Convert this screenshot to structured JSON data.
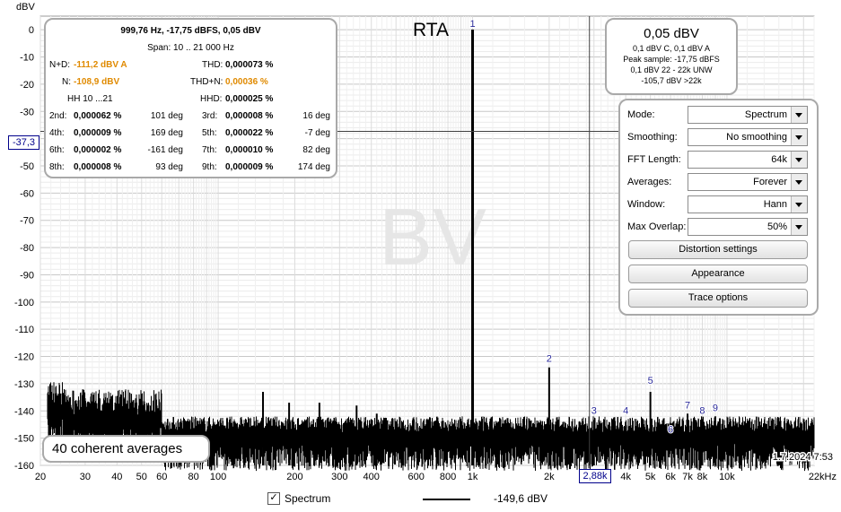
{
  "chart_data": {
    "type": "line",
    "title": "RTA",
    "watermark": "BV",
    "ylabel": "dBV",
    "x_scale": "log",
    "xlim": [
      20,
      22000
    ],
    "ylim": [
      -160,
      5
    ],
    "grid": true,
    "y_ticks": [
      "0",
      "-10",
      "-20",
      "-30",
      "-40",
      "-50",
      "-60",
      "-70",
      "-80",
      "-90",
      "-100",
      "-110",
      "-120",
      "-130",
      "-140",
      "-150",
      "-160"
    ],
    "x_ticks": [
      {
        "v": 20,
        "t": "20"
      },
      {
        "v": 30,
        "t": "30"
      },
      {
        "v": 40,
        "t": "40"
      },
      {
        "v": 50,
        "t": "50"
      },
      {
        "v": 60,
        "t": "60"
      },
      {
        "v": 80,
        "t": "80"
      },
      {
        "v": 100,
        "t": "100"
      },
      {
        "v": 200,
        "t": "200"
      },
      {
        "v": 300,
        "t": "300"
      },
      {
        "v": 400,
        "t": "400"
      },
      {
        "v": 600,
        "t": "600"
      },
      {
        "v": 800,
        "t": "800"
      },
      {
        "v": 1000,
        "t": "1k"
      },
      {
        "v": 2000,
        "t": "2k"
      },
      {
        "v": 4000,
        "t": "4k"
      },
      {
        "v": 5000,
        "t": "5k"
      },
      {
        "v": 6000,
        "t": "6k"
      },
      {
        "v": 7000,
        "t": "7k"
      },
      {
        "v": 8000,
        "t": "8k"
      },
      {
        "v": 10000,
        "t": "10k"
      },
      {
        "v": 22000,
        "t": "22kHz"
      }
    ],
    "series": [
      {
        "name": "Spectrum",
        "color": "#000000",
        "noise_floor": -148,
        "peaks": [
          {
            "x": 1000,
            "y": 0.05
          },
          {
            "x": 2000,
            "y": -124
          },
          {
            "x": 5000,
            "y": -133
          },
          {
            "x": 95,
            "y": -147
          },
          {
            "x": 150,
            "y": -133
          },
          {
            "x": 190,
            "y": -137
          },
          {
            "x": 250,
            "y": -137
          },
          {
            "x": 350,
            "y": -138
          },
          {
            "x": 420,
            "y": -141
          },
          {
            "x": 3000,
            "y": -145
          },
          {
            "x": 4000,
            "y": -144
          },
          {
            "x": 7000,
            "y": -141
          },
          {
            "x": 8000,
            "y": -143
          },
          {
            "x": 9000,
            "y": -142
          }
        ]
      }
    ],
    "harmonic_markers": [
      {
        "label": "1",
        "x": 1000,
        "y": 0
      },
      {
        "label": "2",
        "x": 2000,
        "y": -123
      },
      {
        "label": "3",
        "x": 3000,
        "y": -142
      },
      {
        "label": "4",
        "x": 4000,
        "y": -142
      },
      {
        "label": "5",
        "x": 5000,
        "y": -131
      },
      {
        "label": "6",
        "x": 6000,
        "y": -149
      },
      {
        "label": "7",
        "x": 7000,
        "y": -140
      },
      {
        "label": "8",
        "x": 8000,
        "y": -142
      },
      {
        "label": "9",
        "x": 9000,
        "y": -141
      }
    ],
    "cursor": {
      "x": 2880,
      "y": -37.3,
      "x_readout": "2,88k",
      "y_readout": "-37,3"
    },
    "averages_label": "40 coherent averages",
    "timestamp": "1.7.2024 7:53",
    "legend": {
      "checkbox_checked": true,
      "name": "Spectrum",
      "value": "-149,6 dBV"
    }
  },
  "stats": {
    "header1": "999,76 Hz, -17,75 dBFS, 0,05 dBV",
    "header2": "Span: 10 .. 21 000 Hz",
    "nd_label": "N+D:",
    "nd_value": "-111,2 dBV A",
    "thd_label": "THD:",
    "thd_value": "0,000073 %",
    "n_label": "N:",
    "n_value": "-108,9 dBV",
    "thdn_label": "THD+N:",
    "thdn_value": "0,00036 %",
    "hh_label": "HH 10 ...21",
    "hhd_label": "HHD:",
    "hhd_value": "0,000025 %",
    "harmonics": [
      {
        "l1": "2nd:",
        "v1": "0,000062 %",
        "d1": "101 deg",
        "l2": "3rd:",
        "v2": "0,000008 %",
        "d2": "16 deg"
      },
      {
        "l1": "4th:",
        "v1": "0,000009 %",
        "d1": "169 deg",
        "l2": "5th:",
        "v2": "0,000022 %",
        "d2": "-7 deg"
      },
      {
        "l1": "6th:",
        "v1": "0,000002 %",
        "d1": "-161 deg",
        "l2": "7th:",
        "v2": "0,000010 %",
        "d2": "82 deg"
      },
      {
        "l1": "8th:",
        "v1": "0,000008 %",
        "d1": "93 deg",
        "l2": "9th:",
        "v2": "0,000009 %",
        "d2": "174 deg"
      }
    ]
  },
  "level": {
    "main": "0,05 dBV",
    "l1": "0,1 dBV C, 0,1 dBV A",
    "l2": "Peak sample: -17,75 dBFS",
    "l3": "0,1 dBV 22 - 22k UNW",
    "l4": "-105,7 dBV >22k"
  },
  "controls": {
    "mode_label": "Mode:",
    "mode_value": "Spectrum",
    "smoothing_label": "Smoothing:",
    "smoothing_value": "No  smoothing",
    "fft_label": "FFT Length:",
    "fft_value": "64k",
    "avg_label": "Averages:",
    "avg_value": "Forever",
    "window_label": "Window:",
    "window_value": "Hann",
    "overlap_label": "Max Overlap:",
    "overlap_value": "50%",
    "distortion_button": "Distortion settings",
    "appearance_button": "Appearance",
    "trace_button": "Trace options"
  }
}
